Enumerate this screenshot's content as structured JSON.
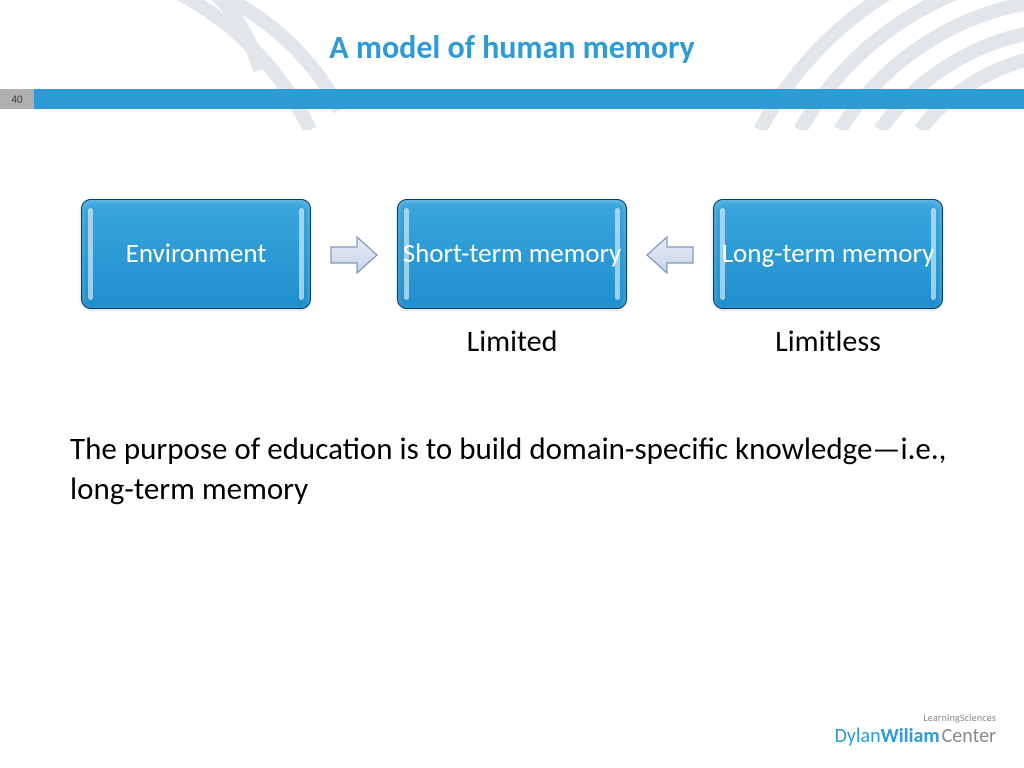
{
  "accent_color": "#2e9bd6",
  "title": {
    "text": "A model of human memory",
    "color": "#2e9bd6",
    "fontsize": 32
  },
  "page_number": {
    "value": "40",
    "bg": "#b0b0b0",
    "color": "#3a3a3a"
  },
  "diagram": {
    "nodes": [
      {
        "label": "Environment",
        "caption": "",
        "bg_top": "#3aa6dc",
        "bg_bottom": "#1f8fce"
      },
      {
        "label": "Short-term memory",
        "caption": "Limited",
        "bg_top": "#3aa6dc",
        "bg_bottom": "#1f8fce"
      },
      {
        "label": "Long-term memory",
        "caption": "Limitless",
        "bg_top": "#3aa6dc",
        "bg_bottom": "#1f8fce"
      }
    ],
    "arrows": [
      {
        "direction": "right",
        "fill_top": "#e9eef6",
        "fill_bottom": "#c6d3e6",
        "stroke": "#7e94b6"
      },
      {
        "direction": "left",
        "fill_top": "#e9eef6",
        "fill_bottom": "#c6d3e6",
        "stroke": "#7e94b6"
      }
    ]
  },
  "blurb": "The purpose of education is to build domain-specific knowledge—i.e., long-term memory",
  "footer": {
    "line1": "LearningSciences",
    "brand_a": "Dylan",
    "brand_b": "Wiliam",
    "brand_c": "Center",
    "brand_color": "#2e9bd6"
  },
  "deco": {
    "stroke": "#dfe3e7"
  }
}
